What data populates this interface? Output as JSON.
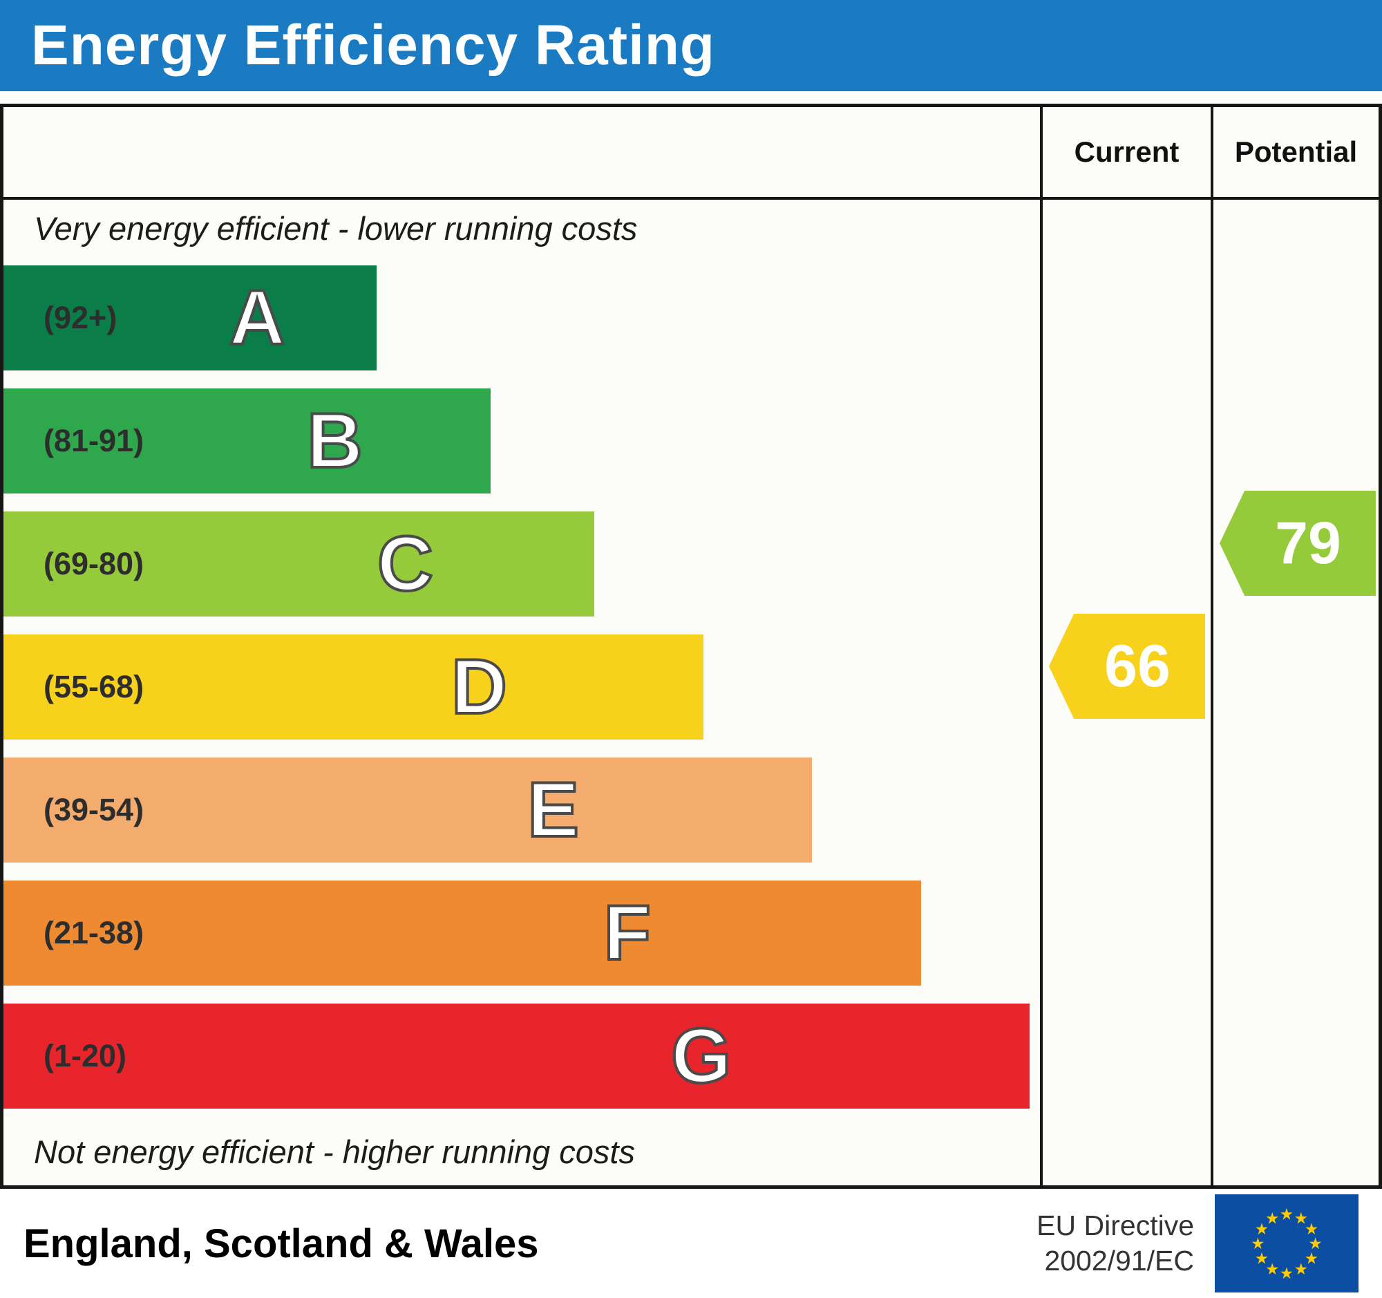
{
  "title": "Energy Efficiency Rating",
  "columns": {
    "current": "Current",
    "potential": "Potential"
  },
  "notes": {
    "top": "Very energy efficient - lower running costs",
    "bottom": "Not energy efficient - higher running costs"
  },
  "footer": {
    "region": "England, Scotland & Wales",
    "directive_line1": "EU Directive",
    "directive_line2": "2002/91/EC",
    "flag_colors": {
      "background": "#0b4ea2",
      "star": "#ffcc00"
    }
  },
  "chart_data": {
    "type": "bar",
    "subtype": "epc-energy-efficiency-bands",
    "title": "Energy Efficiency Rating",
    "bands": [
      {
        "letter": "A",
        "range": "(92+)",
        "min": 92,
        "max": 100,
        "color": "#0b7d48",
        "width_pct": 36
      },
      {
        "letter": "B",
        "range": "(81-91)",
        "min": 81,
        "max": 91,
        "color": "#2fa84d",
        "width_pct": 47
      },
      {
        "letter": "C",
        "range": "(69-80)",
        "min": 69,
        "max": 80,
        "color": "#95ca3b",
        "width_pct": 57
      },
      {
        "letter": "D",
        "range": "(55-68)",
        "min": 55,
        "max": 68,
        "color": "#f7d11c",
        "width_pct": 67.5
      },
      {
        "letter": "E",
        "range": "(39-54)",
        "min": 39,
        "max": 54,
        "color": "#f3ab6e",
        "width_pct": 78
      },
      {
        "letter": "F",
        "range": "(21-38)",
        "min": 21,
        "max": 38,
        "color": "#ee8a32",
        "width_pct": 88.5
      },
      {
        "letter": "G",
        "range": "(1-20)",
        "min": 1,
        "max": 20,
        "color": "#e8242d",
        "width_pct": 99
      }
    ],
    "current": {
      "value": 66,
      "band": "D",
      "color": "#f7d11c"
    },
    "potential": {
      "value": 79,
      "band": "C",
      "color": "#95ca3b"
    }
  }
}
